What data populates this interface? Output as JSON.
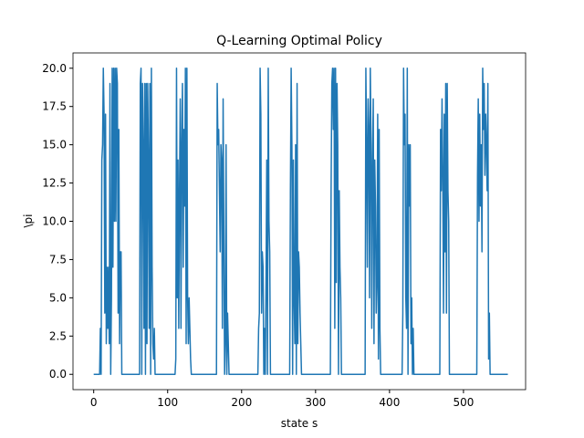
{
  "chart_data": {
    "type": "line",
    "title": "Q-Learning Optimal Policy",
    "x_label": "state s",
    "y_label": "\\pi",
    "x": [
      0,
      8,
      9,
      10,
      11,
      12,
      13,
      14,
      15,
      16,
      17,
      18,
      19,
      20,
      21,
      22,
      23,
      24,
      25,
      26,
      27,
      28,
      29,
      30,
      31,
      32,
      33,
      34,
      35,
      36,
      37,
      38,
      40,
      62,
      63,
      64,
      65,
      66,
      67,
      68,
      69,
      70,
      71,
      72,
      73,
      74,
      75,
      76,
      77,
      78,
      79,
      80,
      81,
      82,
      83,
      85,
      110,
      111,
      112,
      113,
      114,
      115,
      116,
      117,
      118,
      119,
      120,
      121,
      122,
      123,
      124,
      125,
      126,
      127,
      128,
      129,
      130,
      131,
      132,
      134,
      166,
      167,
      168,
      169,
      170,
      171,
      172,
      173,
      174,
      175,
      176,
      177,
      178,
      179,
      180,
      181,
      183,
      222,
      223,
      224,
      225,
      226,
      227,
      228,
      229,
      230,
      231,
      232,
      233,
      234,
      235,
      236,
      237,
      238,
      239,
      241,
      265,
      266,
      267,
      268,
      269,
      270,
      271,
      272,
      273,
      274,
      275,
      276,
      277,
      278,
      279,
      280,
      281,
      283,
      320,
      321,
      322,
      323,
      324,
      325,
      326,
      327,
      328,
      329,
      330,
      331,
      332,
      333,
      334,
      335,
      337,
      367,
      368,
      369,
      370,
      371,
      372,
      373,
      374,
      375,
      376,
      377,
      378,
      379,
      380,
      381,
      382,
      383,
      384,
      385,
      386,
      387,
      388,
      390,
      417,
      418,
      419,
      420,
      421,
      422,
      423,
      424,
      425,
      426,
      427,
      428,
      429,
      430,
      431,
      432,
      433,
      435,
      468,
      469,
      470,
      471,
      472,
      473,
      474,
      475,
      476,
      477,
      478,
      479,
      480,
      481,
      483,
      518,
      519,
      520,
      521,
      522,
      523,
      524,
      525,
      526,
      527,
      528,
      529,
      530,
      531,
      532,
      533,
      534,
      535,
      536,
      548,
      560
    ],
    "series": [
      {
        "color": "#1f77b4",
        "values": [
          0,
          0,
          3,
          0,
          14,
          15,
          20,
          17,
          4,
          17,
          2,
          7,
          3,
          7,
          2,
          19,
          0,
          5,
          20,
          7,
          20,
          10,
          20,
          10,
          20,
          19,
          4,
          16,
          2,
          8,
          8,
          0,
          0,
          0,
          19,
          20,
          0,
          19,
          15,
          3,
          19,
          0,
          19,
          2,
          19,
          14,
          3,
          19,
          0,
          20,
          7,
          2,
          1,
          3,
          0,
          0,
          0,
          1,
          20,
          5,
          14,
          3,
          12,
          18,
          3,
          15,
          19,
          7,
          16,
          11,
          20,
          2,
          20,
          5,
          2,
          5,
          3,
          1,
          0,
          0,
          0,
          19,
          15,
          16,
          12,
          8,
          15,
          14,
          3,
          18,
          9,
          0,
          2,
          15,
          0,
          4,
          0,
          0,
          3,
          4,
          20,
          17,
          4,
          8,
          7,
          0,
          3,
          0,
          6,
          14,
          0,
          20,
          10,
          8,
          0,
          0,
          0,
          12,
          20,
          15,
          0,
          14,
          5,
          2,
          15,
          0,
          19,
          2,
          8,
          7,
          4,
          2,
          0,
          0,
          0,
          12,
          19,
          20,
          16,
          20,
          3,
          20,
          6,
          19,
          15,
          0,
          12,
          7,
          5,
          0,
          0,
          0,
          20,
          15,
          7,
          18,
          16,
          5,
          20,
          15,
          3,
          14,
          18,
          2,
          14,
          11,
          4,
          6,
          17,
          1,
          16,
          3,
          0,
          0,
          0,
          4,
          20,
          15,
          17,
          5,
          3,
          20,
          0,
          15,
          11,
          15,
          2,
          5,
          0,
          3,
          0,
          0,
          0,
          16,
          12,
          18,
          13,
          4,
          17,
          8,
          19,
          4,
          19,
          12,
          10,
          0,
          0,
          0,
          13,
          18,
          10,
          17,
          11,
          15,
          8,
          20,
          16,
          19,
          13,
          17,
          15,
          12,
          19,
          1,
          4,
          0,
          0,
          0
        ]
      }
    ],
    "xlim": [
      -28,
      584
    ],
    "ylim": [
      -1,
      21
    ],
    "xticks": [
      0,
      100,
      200,
      300,
      400,
      500
    ],
    "yticks": [
      {
        "value": 0,
        "label": "0.0"
      },
      2.5,
      {
        "value": 5,
        "label": "5.0"
      },
      7.5,
      {
        "value": 10,
        "label": "10.0"
      },
      12.5,
      {
        "value": 15,
        "label": "15.0"
      },
      17.5,
      {
        "value": 20,
        "label": "20.0"
      }
    ]
  }
}
